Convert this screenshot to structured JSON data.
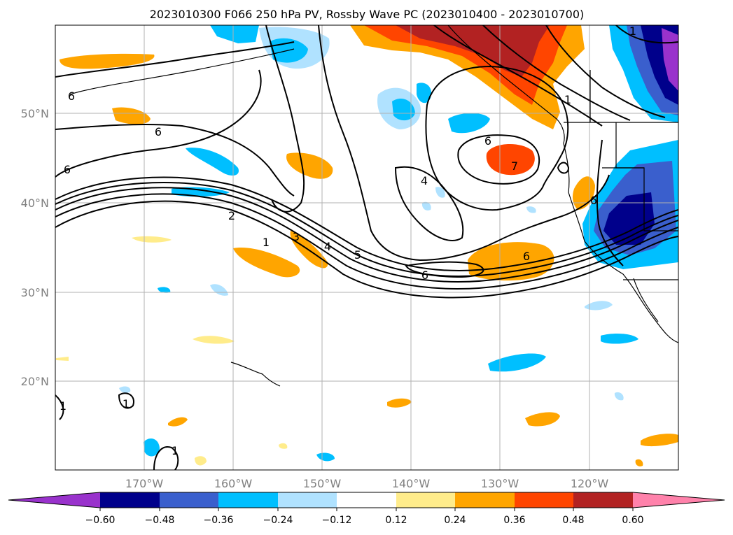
{
  "title": "2023010300 F066 250 hPa PV, Rossby Wave PC (2023010400 - 2023010700)",
  "map": {
    "lat_labels": [
      {
        "lat": 50,
        "label": "50°N"
      },
      {
        "lat": 40,
        "label": "40°N"
      },
      {
        "lat": 30,
        "label": "30°N"
      },
      {
        "lat": 20,
        "label": "20°N"
      }
    ],
    "lon_labels": [
      {
        "lon": -170,
        "label": "170°W"
      },
      {
        "lon": -160,
        "label": "160°W"
      },
      {
        "lon": -150,
        "label": "150°W"
      },
      {
        "lon": -140,
        "label": "140°W"
      },
      {
        "lon": -130,
        "label": "130°W"
      },
      {
        "lon": -120,
        "label": "120°W"
      }
    ],
    "extent": {
      "lon_min": -180,
      "lon_max": -110,
      "lat_min": 10,
      "lat_max": 60
    },
    "contour_labels": [
      "6",
      "6",
      "6",
      "2",
      "1",
      "3",
      "4",
      "5",
      "6",
      "4",
      "6",
      "7",
      "6",
      "1",
      "1",
      "6",
      "1",
      "1",
      "1"
    ]
  },
  "colorbar": {
    "ticks": [
      "−0.60",
      "−0.48",
      "−0.36",
      "−0.24",
      "−0.12",
      "0.12",
      "0.24",
      "0.36",
      "0.48",
      "0.60"
    ],
    "colors": [
      "#9932cc",
      "#00008b",
      "#3a5fcd",
      "#00bfff",
      "#b0e2ff",
      "#ffffff",
      "#ffec8b",
      "#ffa500",
      "#ff4500",
      "#b22222",
      "#ff82ab"
    ]
  },
  "palette": {
    "neg1": "#b0e2ff",
    "neg2": "#00bfff",
    "neg3": "#3a5fcd",
    "neg4": "#00008b",
    "neg5": "#9932cc",
    "pos1": "#ffec8b",
    "pos2": "#ffa500",
    "pos3": "#ff4500",
    "pos4": "#b22222"
  }
}
